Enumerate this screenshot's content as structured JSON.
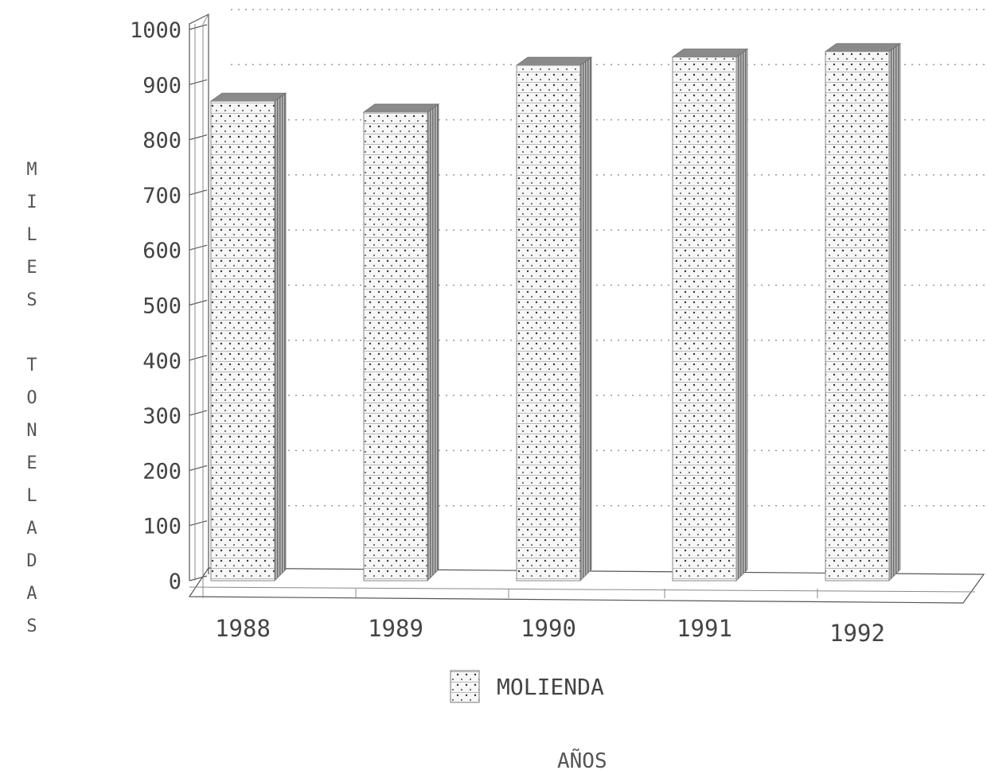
{
  "chart_data": {
    "type": "bar",
    "categories": [
      "1988",
      "1989",
      "1990",
      "1991",
      "1992"
    ],
    "series": [
      {
        "name": "MOLIENDA",
        "values": [
          870,
          850,
          935,
          950,
          960
        ]
      }
    ],
    "xlabel": "AÑOS",
    "ylabel": "MILES TONELADAS",
    "ylabel_letters": [
      "M",
      "I",
      "L",
      "E",
      "S",
      "",
      "T",
      "O",
      "N",
      "E",
      "L",
      "A",
      "D",
      "A",
      "S"
    ],
    "yticks": [
      "0",
      "100",
      "200",
      "300",
      "400",
      "500",
      "600",
      "700",
      "800",
      "900",
      "1000"
    ],
    "ylim": [
      0,
      1000
    ],
    "grid": true,
    "legend": "bottom-center",
    "style": "3d"
  },
  "colors": {
    "bar_dots": "#333333",
    "bar_face": "#f7f7f7",
    "bar_shadow": "#8a8a8a",
    "gridline": "#999999",
    "axis": "#555555"
  }
}
